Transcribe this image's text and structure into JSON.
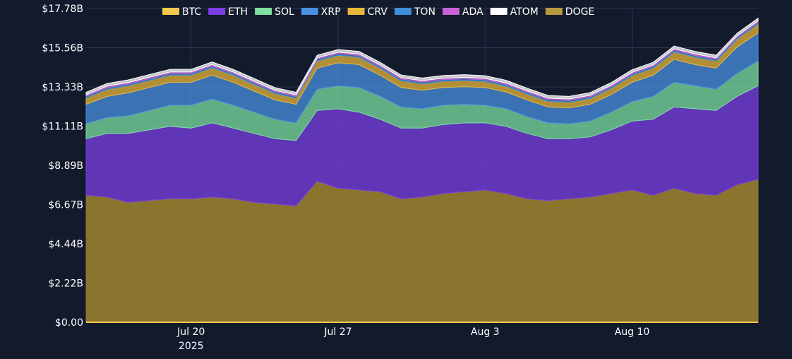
{
  "chart_data": {
    "type": "area",
    "stacked": true,
    "legend_position": "top",
    "grid": true,
    "ylim": [
      0,
      17.78
    ],
    "y_ticks": [
      "$0.00",
      "$2.22B",
      "$4.44B",
      "$6.67B",
      "$8.89B",
      "$11.11B",
      "$13.33B",
      "$15.56B",
      "$17.78B"
    ],
    "x_ticks": [
      {
        "date": "2025-07-20",
        "label": "Jul 20",
        "sublabel": "2025"
      },
      {
        "date": "2025-07-27",
        "label": "Jul 27",
        "sublabel": ""
      },
      {
        "date": "2025-08-03",
        "label": "Aug 3",
        "sublabel": ""
      },
      {
        "date": "2025-08-10",
        "label": "Aug 10",
        "sublabel": ""
      }
    ],
    "x": [
      "2025-07-15",
      "2025-07-16",
      "2025-07-17",
      "2025-07-18",
      "2025-07-19",
      "2025-07-20",
      "2025-07-21",
      "2025-07-22",
      "2025-07-23",
      "2025-07-24",
      "2025-07-25",
      "2025-07-26",
      "2025-07-27",
      "2025-07-28",
      "2025-07-29",
      "2025-07-30",
      "2025-07-31",
      "2025-08-01",
      "2025-08-02",
      "2025-08-03",
      "2025-08-04",
      "2025-08-05",
      "2025-08-06",
      "2025-08-07",
      "2025-08-08",
      "2025-08-09",
      "2025-08-10",
      "2025-08-11",
      "2025-08-12",
      "2025-08-13",
      "2025-08-14",
      "2025-08-15",
      "2025-08-16"
    ],
    "series": [
      {
        "name": "BTC",
        "color": "#f2c94c",
        "values": [
          0.05,
          0.05,
          0.05,
          0.05,
          0.05,
          0.05,
          0.05,
          0.05,
          0.05,
          0.05,
          0.05,
          0.05,
          0.05,
          0.05,
          0.05,
          0.05,
          0.05,
          0.05,
          0.05,
          0.05,
          0.05,
          0.05,
          0.05,
          0.05,
          0.05,
          0.05,
          0.05,
          0.05,
          0.05,
          0.05,
          0.05,
          0.05,
          0.05
        ]
      },
      {
        "name": "ETH",
        "color": "#7b3fe4",
        "values": [
          3.2,
          3.6,
          3.9,
          4.0,
          4.1,
          4.0,
          4.2,
          4.0,
          3.9,
          3.7,
          3.7,
          4.0,
          4.5,
          4.4,
          4.1,
          4.0,
          3.9,
          3.9,
          3.9,
          3.8,
          3.8,
          3.7,
          3.5,
          3.4,
          3.4,
          3.6,
          3.9,
          4.3,
          4.6,
          4.8,
          4.8,
          5.0,
          5.3
        ]
      },
      {
        "name": "SOL",
        "color": "#7ee0a2",
        "values": [
          0.85,
          0.9,
          1.0,
          1.1,
          1.2,
          1.3,
          1.35,
          1.3,
          1.2,
          1.1,
          1.0,
          1.2,
          1.3,
          1.4,
          1.3,
          1.2,
          1.1,
          1.1,
          1.05,
          1.0,
          1.0,
          0.95,
          0.9,
          0.85,
          0.9,
          1.0,
          1.1,
          1.3,
          1.4,
          1.3,
          1.2,
          1.3,
          1.4
        ]
      },
      {
        "name": "XRP",
        "color": "#4a90e2",
        "values": [
          1.1,
          1.2,
          1.3,
          1.3,
          1.3,
          1.3,
          1.35,
          1.3,
          1.2,
          1.1,
          1.05,
          1.2,
          1.3,
          1.3,
          1.2,
          1.1,
          1.05,
          1.0,
          1.0,
          1.0,
          0.95,
          0.95,
          0.9,
          0.9,
          0.95,
          1.0,
          1.1,
          1.2,
          1.3,
          1.2,
          1.2,
          1.5,
          1.6
        ]
      },
      {
        "name": "CRV",
        "color": "#e8b739",
        "values": [
          0.35,
          0.4,
          0.4,
          0.4,
          0.4,
          0.4,
          0.42,
          0.4,
          0.38,
          0.36,
          0.35,
          0.4,
          0.42,
          0.42,
          0.4,
          0.38,
          0.36,
          0.35,
          0.35,
          0.34,
          0.33,
          0.33,
          0.32,
          0.32,
          0.33,
          0.35,
          0.38,
          0.4,
          0.42,
          0.42,
          0.4,
          0.45,
          0.5
        ]
      },
      {
        "name": "TON",
        "color": "#3f8fd8",
        "values": [
          0.1,
          0.1,
          0.1,
          0.1,
          0.1,
          0.1,
          0.1,
          0.1,
          0.1,
          0.1,
          0.1,
          0.1,
          0.1,
          0.1,
          0.1,
          0.1,
          0.1,
          0.1,
          0.1,
          0.1,
          0.1,
          0.1,
          0.1,
          0.1,
          0.1,
          0.1,
          0.1,
          0.1,
          0.1,
          0.1,
          0.1,
          0.1,
          0.1
        ]
      },
      {
        "name": "ADA",
        "color": "#c964d8",
        "values": [
          0.08,
          0.08,
          0.08,
          0.08,
          0.08,
          0.08,
          0.08,
          0.08,
          0.08,
          0.08,
          0.08,
          0.08,
          0.08,
          0.08,
          0.08,
          0.08,
          0.08,
          0.08,
          0.08,
          0.08,
          0.08,
          0.08,
          0.08,
          0.08,
          0.08,
          0.08,
          0.08,
          0.08,
          0.08,
          0.08,
          0.08,
          0.08,
          0.08
        ]
      },
      {
        "name": "ATOM",
        "color": "#ffffff",
        "values": [
          0.15,
          0.15,
          0.15,
          0.15,
          0.15,
          0.15,
          0.15,
          0.15,
          0.15,
          0.15,
          0.15,
          0.15,
          0.15,
          0.15,
          0.15,
          0.15,
          0.15,
          0.15,
          0.15,
          0.15,
          0.15,
          0.15,
          0.15,
          0.15,
          0.15,
          0.15,
          0.15,
          0.15,
          0.15,
          0.15,
          0.15,
          0.15,
          0.15
        ]
      },
      {
        "name": "DOGE",
        "color": "#b89a3e",
        "values": [
          0.0,
          0.0,
          0.0,
          0.0,
          0.0,
          0.0,
          0.0,
          0.0,
          0.0,
          0.0,
          0.0,
          0.0,
          0.0,
          0.0,
          0.0,
          0.0,
          0.0,
          0.0,
          0.0,
          0.0,
          0.0,
          0.0,
          0.0,
          0.0,
          0.0,
          0.0,
          0.0,
          0.0,
          0.0,
          0.0,
          0.0,
          0.0,
          0.0
        ]
      }
    ],
    "base_series": {
      "name": "DOGE",
      "color": "#8a752f",
      "values": [
        7.2,
        7.1,
        6.8,
        6.9,
        7.0,
        7.0,
        7.1,
        7.0,
        6.8,
        6.7,
        6.6,
        8.0,
        7.6,
        7.5,
        7.4,
        7.0,
        7.1,
        7.3,
        7.4,
        7.5,
        7.3,
        7.0,
        6.9,
        7.0,
        7.1,
        7.3,
        7.5,
        7.2,
        7.6,
        7.3,
        7.2,
        7.8,
        8.1
      ]
    }
  }
}
